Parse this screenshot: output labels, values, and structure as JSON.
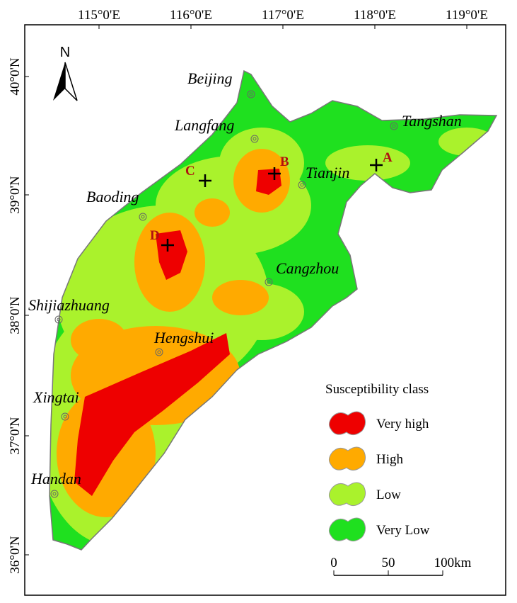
{
  "map": {
    "north": "N",
    "lon_labels": [
      "115°0'E",
      "116°0'E",
      "117°0'E",
      "118°0'E",
      "119°0'E"
    ],
    "lat_labels": [
      "40°0'N",
      "39°0'N",
      "38°0'N",
      "37°0'N",
      "36°0'N"
    ],
    "cities": [
      "Beijing",
      "Langfang",
      "Tangshan",
      "Tianjin",
      "Baoding",
      "Cangzhou",
      "Shijiazhuang",
      "Hengshui",
      "Xingtai",
      "Handan"
    ],
    "points": [
      "A",
      "B",
      "C",
      "D"
    ],
    "legend": {
      "title": "Susceptibility class",
      "items": [
        "Very high",
        "High",
        "Low",
        "Very Low"
      ]
    },
    "scale": [
      "0",
      "50",
      "100km"
    ]
  }
}
